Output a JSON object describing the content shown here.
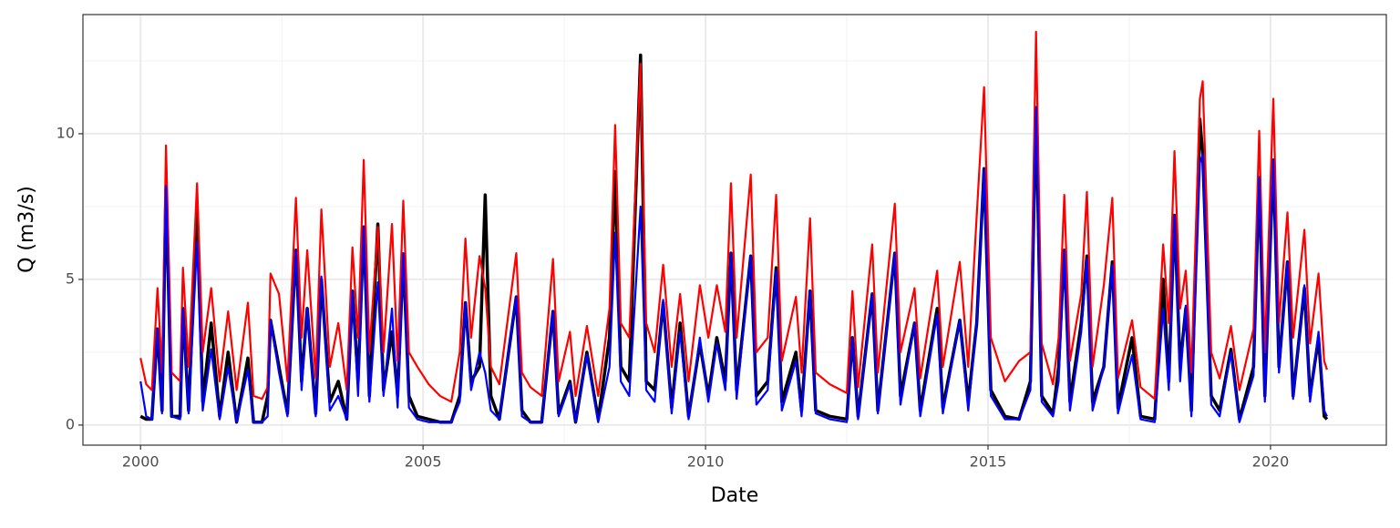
{
  "chart_data": {
    "type": "line",
    "xlabel": "Date",
    "ylabel": "Q (m3/s)",
    "xlim": [
      1998.98,
      2022.05
    ],
    "ylim": [
      -0.69,
      14.09
    ],
    "xticks": [
      2000,
      2005,
      2010,
      2015,
      2020
    ],
    "yticks": [
      0,
      5,
      10
    ],
    "xminor": [
      2002.5,
      2007.5,
      2012.5,
      2017.5
    ],
    "yminor": [
      2.5,
      7.5,
      12.5
    ],
    "grid": true,
    "x": [
      2000.0,
      2000.1,
      2000.2,
      2000.3,
      2000.38,
      2000.45,
      2000.55,
      2000.7,
      2000.75,
      2000.85,
      2001.0,
      2001.1,
      2001.25,
      2001.4,
      2001.55,
      2001.7,
      2001.9,
      2002.0,
      2002.15,
      2002.25,
      2002.3,
      2002.45,
      2002.6,
      2002.75,
      2002.85,
      2002.95,
      2003.1,
      2003.2,
      2003.35,
      2003.5,
      2003.65,
      2003.75,
      2003.85,
      2003.95,
      2004.05,
      2004.2,
      2004.3,
      2004.45,
      2004.55,
      2004.65,
      2004.75,
      2004.9,
      2005.1,
      2005.3,
      2005.5,
      2005.65,
      2005.75,
      2005.85,
      2006.0,
      2006.1,
      2006.2,
      2006.35,
      2006.65,
      2006.75,
      2006.9,
      2007.1,
      2007.3,
      2007.4,
      2007.6,
      2007.7,
      2007.9,
      2008.1,
      2008.3,
      2008.4,
      2008.5,
      2008.65,
      2008.85,
      2008.95,
      2009.1,
      2009.25,
      2009.4,
      2009.55,
      2009.7,
      2009.9,
      2010.05,
      2010.2,
      2010.35,
      2010.45,
      2010.55,
      2010.8,
      2010.9,
      2011.1,
      2011.25,
      2011.35,
      2011.6,
      2011.7,
      2011.85,
      2011.95,
      2012.2,
      2012.5,
      2012.6,
      2012.7,
      2012.95,
      2013.05,
      2013.35,
      2013.45,
      2013.7,
      2013.8,
      2014.1,
      2014.2,
      2014.5,
      2014.65,
      2014.8,
      2014.93,
      2015.05,
      2015.3,
      2015.55,
      2015.75,
      2015.85,
      2015.95,
      2016.15,
      2016.25,
      2016.35,
      2016.45,
      2016.65,
      2016.75,
      2016.85,
      2017.05,
      2017.2,
      2017.3,
      2017.55,
      2017.7,
      2017.95,
      2018.1,
      2018.2,
      2018.3,
      2018.4,
      2018.5,
      2018.6,
      2018.75,
      2018.8,
      2018.95,
      2019.1,
      2019.3,
      2019.45,
      2019.7,
      2019.8,
      2019.9,
      2020.05,
      2020.15,
      2020.3,
      2020.4,
      2020.6,
      2020.7,
      2020.85,
      2020.95,
      2021.0
    ],
    "series": [
      {
        "color": "#000000",
        "values": [
          0.3,
          0.2,
          0.2,
          3.3,
          0.5,
          8.2,
          0.3,
          0.3,
          4.0,
          0.5,
          7.5,
          0.8,
          3.5,
          0.3,
          2.5,
          0.1,
          2.3,
          0.1,
          0.1,
          1.0,
          3.6,
          2.0,
          0.4,
          6.0,
          1.5,
          4.0,
          0.4,
          5.0,
          0.8,
          1.5,
          0.2,
          4.6,
          1.5,
          6.8,
          1.0,
          6.9,
          1.2,
          3.2,
          1.0,
          5.8,
          1.0,
          0.3,
          0.2,
          0.1,
          0.1,
          1.0,
          4.2,
          1.5,
          2.0,
          7.9,
          1.0,
          0.2,
          4.4,
          0.5,
          0.1,
          0.1,
          3.9,
          0.4,
          1.5,
          0.1,
          2.5,
          0.2,
          3.0,
          8.7,
          2.0,
          1.5,
          12.7,
          1.5,
          1.2,
          4.2,
          0.6,
          3.5,
          0.3,
          2.8,
          1.0,
          3.0,
          1.5,
          5.9,
          1.2,
          5.8,
          1.0,
          1.5,
          5.4,
          0.8,
          2.5,
          0.5,
          4.6,
          0.5,
          0.3,
          0.2,
          3.0,
          0.3,
          4.5,
          0.5,
          5.9,
          1.0,
          3.5,
          0.5,
          4.0,
          0.6,
          3.6,
          0.8,
          3.5,
          8.8,
          1.2,
          0.3,
          0.2,
          1.5,
          10.9,
          1.0,
          0.4,
          2.0,
          6.0,
          0.8,
          3.5,
          5.8,
          0.8,
          2.0,
          5.6,
          0.6,
          3.0,
          0.3,
          0.2,
          5.0,
          1.5,
          7.2,
          2.0,
          4.0,
          0.5,
          10.5,
          9.3,
          1.0,
          0.5,
          2.6,
          0.2,
          2.0,
          8.5,
          1.0,
          9.1,
          2.0,
          5.6,
          1.0,
          4.7,
          1.0,
          3.0,
          0.3,
          0.2
        ]
      },
      {
        "color": "#ff0000",
        "values": [
          2.3,
          1.4,
          1.2,
          4.7,
          1.8,
          9.6,
          1.8,
          1.5,
          5.4,
          2.0,
          8.3,
          2.5,
          4.7,
          1.5,
          3.9,
          1.2,
          4.2,
          1.0,
          0.9,
          1.3,
          5.2,
          4.5,
          1.5,
          7.8,
          3.0,
          6.0,
          1.6,
          7.4,
          2.0,
          3.5,
          1.2,
          6.1,
          3.0,
          9.1,
          2.5,
          6.8,
          2.5,
          6.9,
          2.2,
          7.7,
          2.5,
          2.0,
          1.4,
          1.0,
          0.8,
          2.5,
          6.4,
          3.0,
          5.8,
          4.7,
          2.0,
          1.4,
          5.9,
          1.8,
          1.3,
          1.0,
          5.7,
          1.5,
          3.2,
          1.0,
          3.4,
          1.0,
          4.0,
          10.3,
          3.5,
          3.0,
          12.4,
          3.5,
          2.5,
          5.5,
          2.0,
          4.5,
          1.5,
          4.8,
          3.0,
          4.8,
          3.2,
          8.3,
          3.0,
          8.6,
          2.5,
          3.0,
          7.9,
          2.2,
          4.4,
          1.8,
          7.1,
          1.8,
          1.4,
          1.1,
          4.6,
          1.3,
          6.2,
          1.8,
          7.6,
          2.5,
          4.7,
          1.6,
          5.3,
          2.0,
          5.6,
          2.0,
          7.2,
          11.6,
          3.0,
          1.5,
          2.2,
          2.5,
          13.5,
          2.8,
          1.4,
          3.0,
          7.9,
          2.2,
          4.5,
          8.0,
          2.0,
          4.8,
          7.8,
          1.6,
          3.6,
          1.3,
          0.9,
          6.2,
          3.5,
          9.4,
          4.0,
          5.3,
          1.8,
          11.2,
          11.8,
          2.5,
          1.6,
          3.4,
          1.2,
          3.3,
          10.1,
          2.5,
          11.2,
          3.5,
          7.3,
          3.0,
          6.7,
          2.8,
          5.2,
          2.2,
          1.9
        ]
      },
      {
        "color": "#0000ff",
        "values": [
          1.5,
          0.3,
          0.2,
          3.3,
          0.4,
          8.2,
          0.3,
          0.2,
          4.0,
          0.4,
          6.3,
          0.5,
          2.6,
          0.2,
          2.0,
          0.1,
          1.9,
          0.1,
          0.1,
          0.3,
          3.6,
          1.8,
          0.3,
          6.0,
          1.2,
          4.0,
          0.3,
          5.1,
          0.5,
          1.0,
          0.2,
          4.6,
          1.0,
          6.8,
          0.8,
          4.9,
          1.0,
          4.0,
          0.6,
          5.9,
          0.6,
          0.2,
          0.1,
          0.1,
          0.1,
          0.8,
          4.2,
          1.2,
          2.5,
          1.8,
          0.5,
          0.2,
          4.4,
          0.3,
          0.1,
          0.1,
          3.9,
          0.3,
          1.4,
          0.1,
          2.4,
          0.1,
          2.0,
          6.6,
          1.5,
          1.0,
          7.5,
          1.2,
          0.8,
          4.3,
          0.4,
          3.2,
          0.2,
          3.0,
          0.8,
          2.8,
          1.2,
          5.9,
          0.9,
          5.8,
          0.7,
          1.2,
          5.3,
          0.5,
          2.2,
          0.3,
          4.6,
          0.4,
          0.2,
          0.1,
          3.0,
          0.2,
          4.5,
          0.4,
          5.9,
          0.7,
          3.5,
          0.3,
          3.8,
          0.4,
          3.6,
          0.5,
          3.5,
          8.8,
          1.0,
          0.2,
          0.2,
          1.2,
          10.9,
          0.8,
          0.3,
          1.5,
          6.0,
          0.5,
          3.2,
          5.7,
          0.5,
          2.0,
          5.5,
          0.4,
          2.4,
          0.2,
          0.1,
          4.0,
          1.2,
          7.2,
          1.5,
          4.1,
          0.3,
          9.0,
          9.3,
          0.7,
          0.3,
          2.5,
          0.1,
          1.7,
          8.5,
          0.8,
          9.1,
          1.8,
          5.6,
          0.9,
          4.8,
          0.8,
          3.2,
          0.5,
          0.3
        ]
      }
    ]
  }
}
